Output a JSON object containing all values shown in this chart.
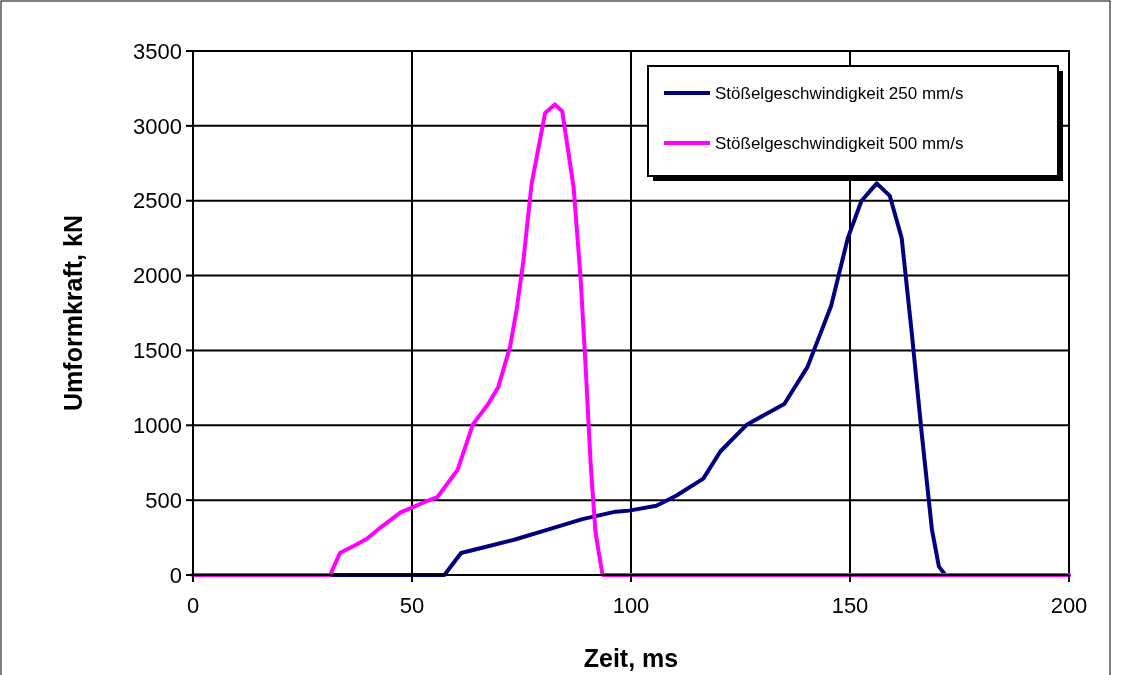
{
  "chart_data": {
    "type": "line",
    "xlabel": "Zeit, ms",
    "ylabel": "Umformkraft, kN",
    "xlim": [
      0,
      200
    ],
    "xticks": [
      0,
      50,
      100,
      150,
      200
    ],
    "ylim": [
      0,
      3500
    ],
    "yticks": [
      0,
      500,
      1000,
      1500,
      2000,
      2500,
      3000,
      3500
    ],
    "grid": true,
    "legend": "top right",
    "line_style": "solid",
    "marker": "none",
    "series": [
      {
        "name": "Stößelgeschwindigkeit 250 mm/s",
        "color": "#000080",
        "x": [
          0,
          20,
          40,
          57.4,
          61.2,
          67.4,
          73.5,
          81.2,
          88.9,
          96.5,
          99.6,
          105.8,
          110.4,
          116.5,
          120.4,
          126.5,
          135,
          140.3,
          145.7,
          149.5,
          152.6,
          156.1,
          159.1,
          161.8,
          164.1,
          166.4,
          168.7,
          170.3,
          171.8,
          185,
          200
        ],
        "values": [
          0,
          0,
          0,
          0,
          147,
          192,
          237,
          305,
          373,
          423,
          430,
          463,
          531,
          644,
          825,
          1006,
          1142,
          1390,
          1798,
          2250,
          2498,
          2616,
          2532,
          2250,
          1617,
          938,
          305,
          56,
          0,
          0,
          0
        ]
      },
      {
        "name": "Stößelgeschwindigkeit 500 mm/s",
        "color": "#ff00ff",
        "x": [
          0,
          15,
          31.3,
          33.6,
          36.6,
          39.7,
          42.8,
          47.4,
          52.8,
          55.8,
          60.4,
          63.9,
          67.4,
          69.7,
          72.4,
          73.9,
          75.4,
          77.3,
          80.4,
          82.6,
          84.3,
          86.9,
          88.5,
          89.6,
          90.8,
          91.9,
          93.5,
          120,
          160,
          200
        ],
        "values": [
          0,
          0,
          0,
          149,
          192,
          242,
          317,
          418,
          486,
          520,
          701,
          1006,
          1142,
          1255,
          1526,
          1775,
          2091,
          2611,
          3086,
          3143,
          3098,
          2589,
          1979,
          1413,
          735,
          283,
          0,
          0,
          0,
          0
        ]
      }
    ]
  }
}
